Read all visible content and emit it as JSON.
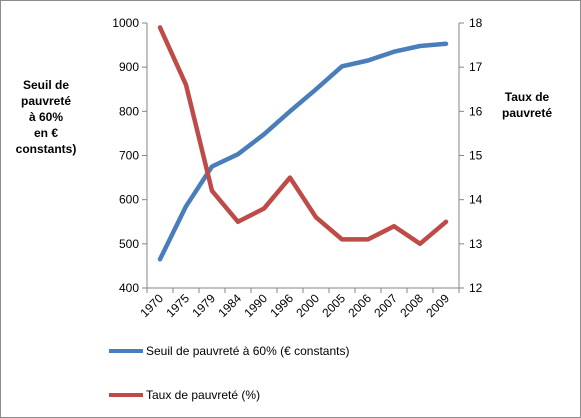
{
  "chart_data": {
    "type": "line",
    "categories": [
      "1970",
      "1975",
      "1979",
      "1984",
      "1990",
      "1996",
      "2000",
      "2005",
      "2006",
      "2007",
      "2008",
      "2009"
    ],
    "series": [
      {
        "name": "Seuil de pauvreté à 60% (€ constants)",
        "axis": "left",
        "color": "#4a7ebb",
        "values": [
          465,
          585,
          675,
          703,
          748,
          800,
          850,
          902,
          915,
          935,
          948,
          953
        ]
      },
      {
        "name": "Taux de pauvreté (%)",
        "axis": "right",
        "color": "#be4b48",
        "values": [
          17.9,
          16.6,
          14.2,
          13.5,
          13.8,
          14.5,
          13.6,
          13.1,
          13.1,
          13.4,
          13.0,
          13.5
        ]
      }
    ],
    "y_left": {
      "label_lines": [
        "Seuil de",
        "pauvreté",
        "à 60%",
        "en € constants)"
      ],
      "ticks": [
        "400",
        "500",
        "600",
        "700",
        "800",
        "900",
        "1000"
      ],
      "ylim": [
        400,
        1000
      ]
    },
    "y_right": {
      "label_lines": [
        "Taux de",
        "pauvreté"
      ],
      "ticks": [
        "12",
        "13",
        "14",
        "15",
        "16",
        "17",
        "18"
      ],
      "ylim": [
        12,
        18
      ]
    },
    "grid": false,
    "legend_placement": "bottom-left"
  }
}
